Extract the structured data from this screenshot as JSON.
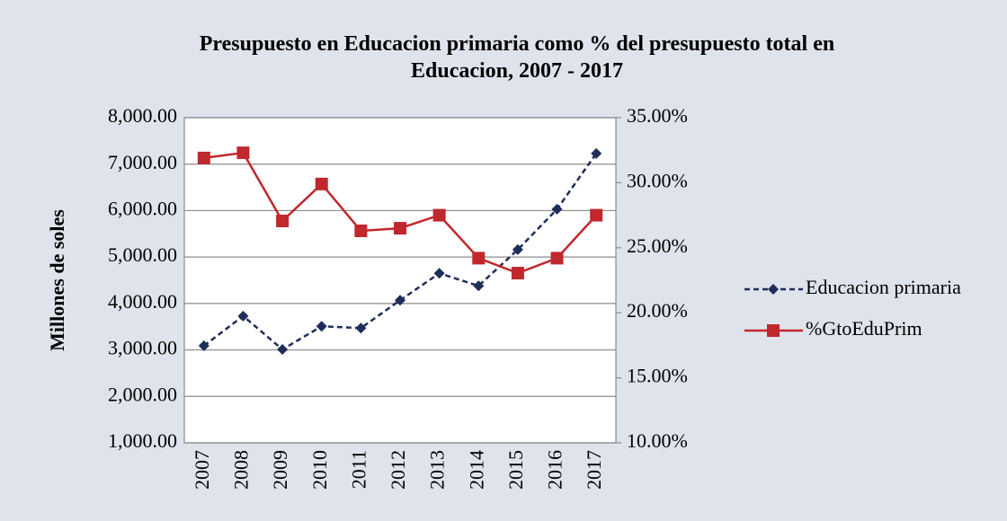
{
  "chart_data": {
    "type": "line",
    "title": "Presupuesto en Educacion primaria como % del presupuesto total en Educacion, 2007 - 2017",
    "ylabel": "Millones de soles",
    "categories": [
      "2007",
      "2008",
      "2009",
      "2010",
      "2011",
      "2012",
      "2013",
      "2014",
      "2015",
      "2016",
      "2017"
    ],
    "series": [
      {
        "name": "Educacion primaria",
        "color": "#1f2d5a",
        "axis": "y",
        "dash": true,
        "marker": "diamond",
        "values": [
          3090,
          3730,
          3010,
          3510,
          3470,
          4070,
          4650,
          4380,
          5160,
          6030,
          7230
        ]
      },
      {
        "name": "%GtoEduPrim",
        "color": "#c0282d",
        "axis": "y2",
        "dash": false,
        "marker": "square",
        "values": [
          31.9,
          32.3,
          27.06,
          29.9,
          26.3,
          26.5,
          27.5,
          24.2,
          23.05,
          24.2,
          27.5
        ]
      }
    ],
    "ylim": [
      1000,
      8000
    ],
    "yticks": [
      {
        "value": 1000,
        "label": "1,000.00"
      },
      {
        "value": 2000,
        "label": "2,000.00"
      },
      {
        "value": 3000,
        "label": "3,000.00"
      },
      {
        "value": 4000,
        "label": "4,000.00"
      },
      {
        "value": 5000,
        "label": "5,000.00"
      },
      {
        "value": 6000,
        "label": "6,000.00"
      },
      {
        "value": 7000,
        "label": "7,000.00"
      },
      {
        "value": 8000,
        "label": "8,000.00"
      }
    ],
    "y2lim": [
      10,
      35
    ],
    "y2ticks": [
      {
        "value": 10,
        "label": "10.00%"
      },
      {
        "value": 15,
        "label": "15.00%"
      },
      {
        "value": 20,
        "label": "20.00%"
      },
      {
        "value": 25,
        "label": "25.00%"
      },
      {
        "value": 30,
        "label": "30.00%"
      },
      {
        "value": 35,
        "label": "35.00%"
      }
    ],
    "grid": true,
    "legend": "right"
  }
}
